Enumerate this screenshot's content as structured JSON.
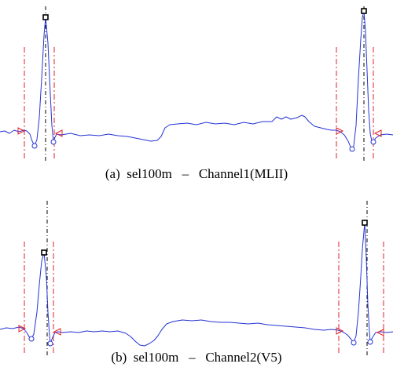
{
  "colors": {
    "signal": "#2433d6",
    "boundary": "#e0202a",
    "peak_line": "#000000",
    "peak_marker": "#000000",
    "min_marker": "#2433d6",
    "caption_text": "#000000"
  },
  "chart_data": [
    {
      "type": "line",
      "caption": "(a)  sel100m   –   Channel1(MLII)",
      "series_color": "#2433d6",
      "beats": [
        {
          "peak": [
            58,
            22
          ],
          "peak_line_x": 58,
          "onset_x": 31,
          "offset_x": 69,
          "onset_marker": [
            28,
            167
          ],
          "offset_marker": [
            74,
            170
          ],
          "minima": [
            [
              44,
              186
            ],
            [
              68,
              181
            ]
          ]
        },
        {
          "peak": [
            463,
            14
          ],
          "peak_line_x": 463,
          "onset_x": 428,
          "offset_x": 475,
          "onset_marker": [
            433,
            167
          ],
          "offset_marker": [
            480,
            170
          ],
          "minima": [
            [
              448,
              190
            ],
            [
              475,
              181
            ]
          ]
        }
      ],
      "signal": [
        [
          0,
          168
        ],
        [
          6,
          167
        ],
        [
          12,
          170
        ],
        [
          18,
          166
        ],
        [
          24,
          168
        ],
        [
          30,
          166
        ],
        [
          34,
          167
        ],
        [
          38,
          171
        ],
        [
          41,
          180
        ],
        [
          44,
          186
        ],
        [
          47,
          178
        ],
        [
          50,
          150
        ],
        [
          53,
          100
        ],
        [
          56,
          45
        ],
        [
          58,
          22
        ],
        [
          61,
          55
        ],
        [
          64,
          120
        ],
        [
          66,
          160
        ],
        [
          68,
          181
        ],
        [
          70,
          175
        ],
        [
          72,
          171
        ],
        [
          78,
          172
        ],
        [
          90,
          170
        ],
        [
          102,
          173
        ],
        [
          114,
          172
        ],
        [
          126,
          173
        ],
        [
          138,
          171
        ],
        [
          150,
          173
        ],
        [
          162,
          174
        ],
        [
          172,
          176
        ],
        [
          182,
          178
        ],
        [
          192,
          180
        ],
        [
          200,
          179
        ],
        [
          205,
          174
        ],
        [
          210,
          163
        ],
        [
          216,
          159
        ],
        [
          226,
          158
        ],
        [
          238,
          157
        ],
        [
          250,
          159
        ],
        [
          262,
          156
        ],
        [
          274,
          158
        ],
        [
          286,
          157
        ],
        [
          298,
          159
        ],
        [
          310,
          156
        ],
        [
          322,
          158
        ],
        [
          334,
          155
        ],
        [
          346,
          155
        ],
        [
          352,
          149
        ],
        [
          358,
          152
        ],
        [
          364,
          149
        ],
        [
          370,
          152
        ],
        [
          378,
          150
        ],
        [
          384,
          147
        ],
        [
          388,
          149
        ],
        [
          393,
          155
        ],
        [
          400,
          161
        ],
        [
          408,
          163
        ],
        [
          416,
          165
        ],
        [
          422,
          166
        ],
        [
          428,
          166
        ],
        [
          433,
          168
        ],
        [
          438,
          172
        ],
        [
          443,
          180
        ],
        [
          447,
          190
        ],
        [
          450,
          186
        ],
        [
          453,
          160
        ],
        [
          456,
          100
        ],
        [
          459,
          50
        ],
        [
          461,
          22
        ],
        [
          463,
          14
        ],
        [
          465,
          40
        ],
        [
          467,
          90
        ],
        [
          469,
          140
        ],
        [
          471,
          170
        ],
        [
          473,
          180
        ],
        [
          475,
          181
        ],
        [
          478,
          176
        ],
        [
          484,
          172
        ],
        [
          492,
          171
        ],
        [
          500,
          172
        ]
      ]
    },
    {
      "type": "line",
      "caption": "(b)  sel100m   –   Channel2(V5)",
      "series_color": "#2433d6",
      "beats": [
        {
          "peak": [
            56,
            74
          ],
          "peak_line_x": 60,
          "onset_x": 31,
          "offset_x": 68,
          "onset_marker": [
            29,
            171
          ],
          "offset_marker": [
            72,
            175
          ],
          "minima": [
            [
              40,
              184
            ],
            [
              64,
              190
            ]
          ]
        },
        {
          "peak": [
            464,
            36
          ],
          "peak_line_x": 467,
          "onset_x": 431,
          "offset_x": 488,
          "onset_marker": [
            433,
            174
          ],
          "offset_marker": [
            483,
            176
          ],
          "minima": [
            [
              450,
              189
            ],
            [
              471,
              188
            ]
          ]
        }
      ],
      "signal": [
        [
          0,
          172
        ],
        [
          8,
          170
        ],
        [
          16,
          171
        ],
        [
          24,
          169
        ],
        [
          30,
          171
        ],
        [
          34,
          176
        ],
        [
          38,
          183
        ],
        [
          40,
          184
        ],
        [
          43,
          178
        ],
        [
          47,
          150
        ],
        [
          50,
          115
        ],
        [
          53,
          85
        ],
        [
          56,
          74
        ],
        [
          59,
          105
        ],
        [
          61,
          150
        ],
        [
          63,
          180
        ],
        [
          64,
          190
        ],
        [
          67,
          182
        ],
        [
          70,
          176
        ],
        [
          74,
          175
        ],
        [
          80,
          176
        ],
        [
          90,
          175
        ],
        [
          100,
          176
        ],
        [
          110,
          174
        ],
        [
          120,
          175
        ],
        [
          130,
          174
        ],
        [
          140,
          175
        ],
        [
          150,
          174
        ],
        [
          160,
          177
        ],
        [
          166,
          181
        ],
        [
          172,
          187
        ],
        [
          178,
          192
        ],
        [
          184,
          193
        ],
        [
          190,
          190
        ],
        [
          196,
          186
        ],
        [
          201,
          180
        ],
        [
          206,
          172
        ],
        [
          212,
          165
        ],
        [
          220,
          162
        ],
        [
          232,
          160
        ],
        [
          244,
          161
        ],
        [
          256,
          160
        ],
        [
          268,
          162
        ],
        [
          280,
          163
        ],
        [
          292,
          163
        ],
        [
          304,
          164
        ],
        [
          316,
          165
        ],
        [
          328,
          164
        ],
        [
          340,
          166
        ],
        [
          352,
          167
        ],
        [
          364,
          168
        ],
        [
          376,
          169
        ],
        [
          388,
          170
        ],
        [
          400,
          172
        ],
        [
          412,
          173
        ],
        [
          422,
          172
        ],
        [
          430,
          173
        ],
        [
          436,
          175
        ],
        [
          442,
          179
        ],
        [
          447,
          185
        ],
        [
          450,
          189
        ],
        [
          453,
          180
        ],
        [
          456,
          150
        ],
        [
          459,
          105
        ],
        [
          461,
          70
        ],
        [
          464,
          36
        ],
        [
          466,
          80
        ],
        [
          468,
          140
        ],
        [
          470,
          175
        ],
        [
          471,
          188
        ],
        [
          474,
          182
        ],
        [
          478,
          176
        ],
        [
          484,
          175
        ],
        [
          492,
          176
        ],
        [
          500,
          175
        ]
      ]
    }
  ]
}
